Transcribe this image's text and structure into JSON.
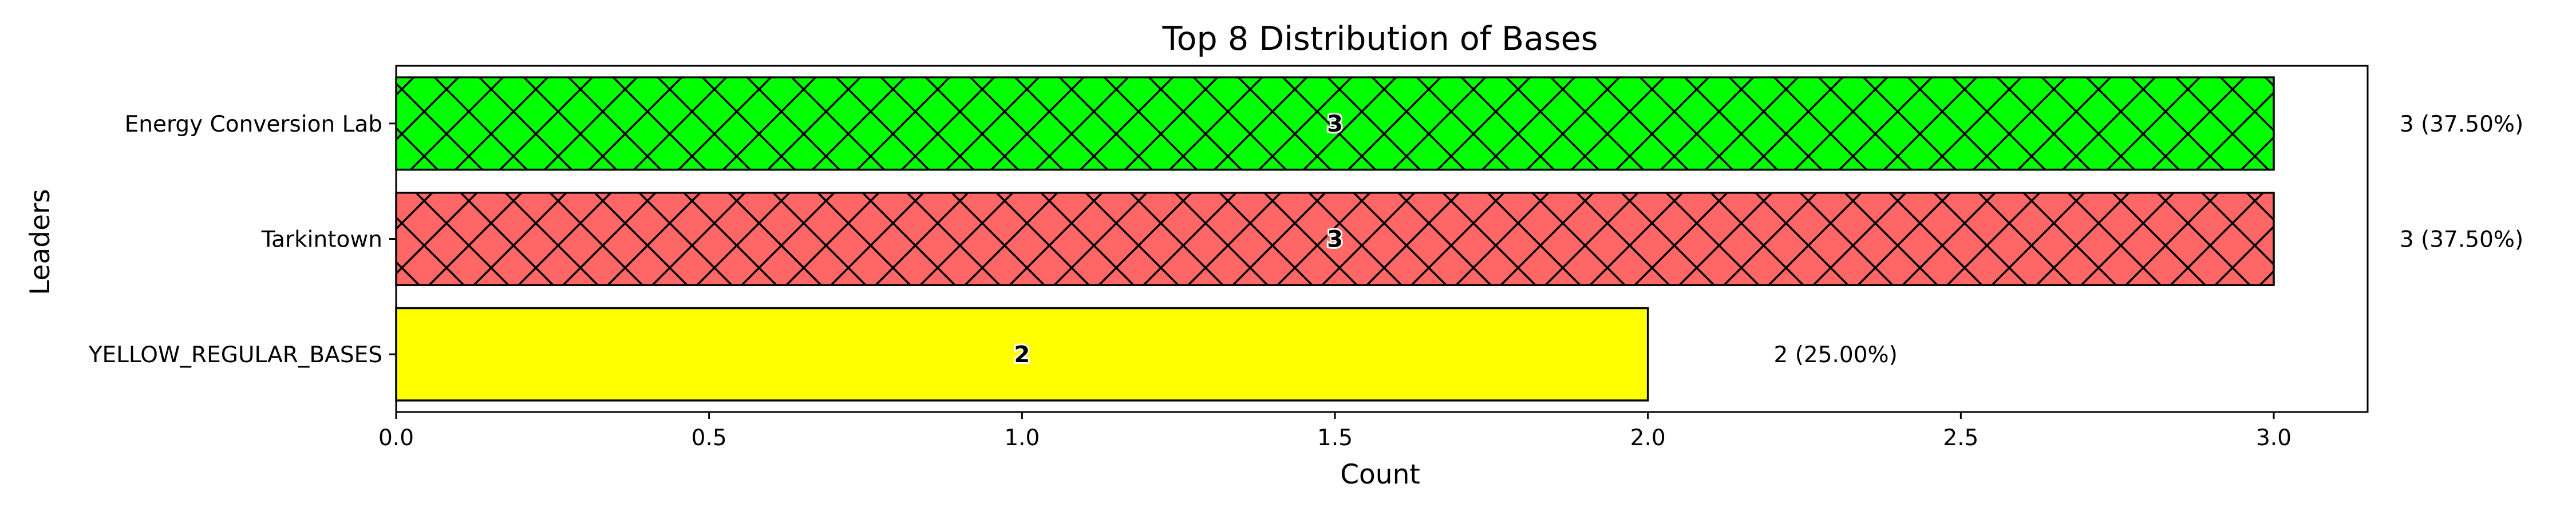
{
  "chart_data": {
    "type": "bar",
    "orientation": "horizontal",
    "title": "Top 8 Distribution of Bases",
    "xlabel": "Count",
    "ylabel": "Leaders",
    "xlim": [
      0,
      3.15
    ],
    "x_ticks": [
      "0.0",
      "0.5",
      "1.0",
      "1.5",
      "2.0",
      "2.5",
      "3.0"
    ],
    "grid": false,
    "legend": "none",
    "categories": [
      "Energy Conversion Lab",
      "Tarkintown",
      "YELLOW_REGULAR_BASES"
    ],
    "values": [
      3,
      3,
      2
    ],
    "bar_labels": [
      "3",
      "3",
      "2"
    ],
    "annotations": [
      "3 (37.50%)",
      "3 (37.50%)",
      "2 (25.00%)"
    ],
    "colors": [
      "#00ff00",
      "#ff6666",
      "#ffff00"
    ],
    "hatch": [
      "x",
      "x",
      "none"
    ]
  }
}
